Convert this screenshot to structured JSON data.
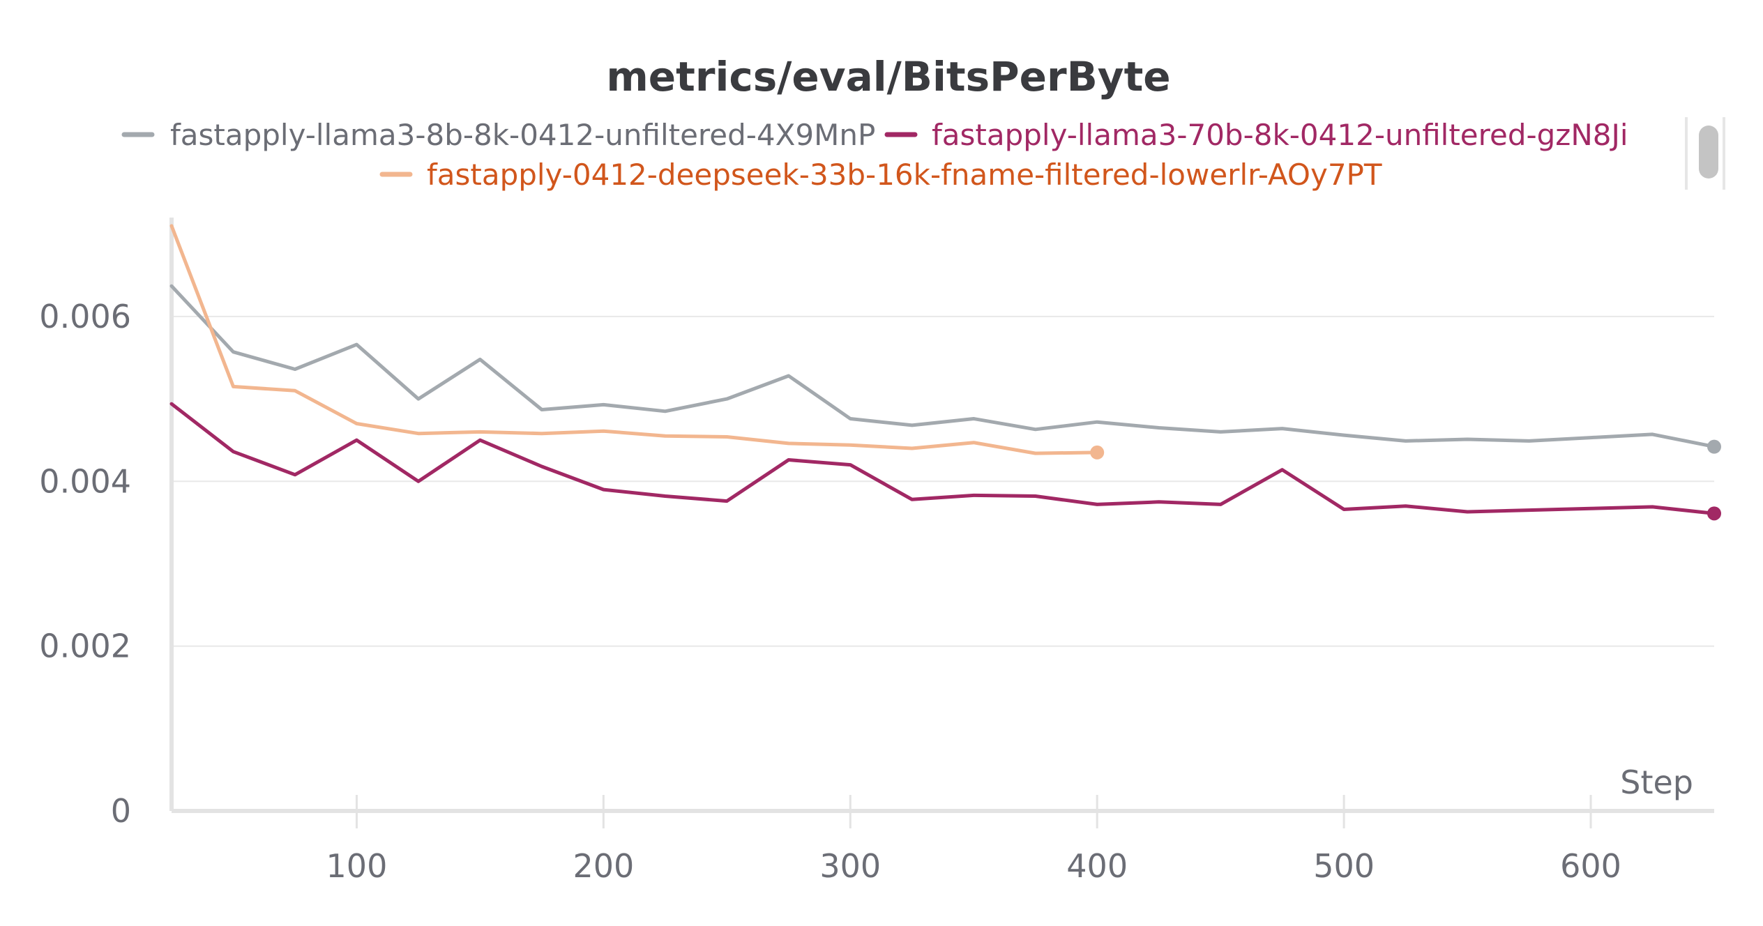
{
  "chart_data": {
    "type": "line",
    "title": "metrics/eval/BitsPerByte",
    "xlabel": "Step",
    "ylabel": "",
    "xlim": [
      25,
      650
    ],
    "ylim": [
      0,
      0.00715
    ],
    "x_ticks": [
      100,
      200,
      300,
      400,
      500,
      600
    ],
    "y_ticks": [
      0,
      0.002,
      0.004,
      0.006
    ],
    "x_tick_labels": [
      "100",
      "200",
      "300",
      "400",
      "500",
      "600"
    ],
    "y_tick_labels": [
      "0",
      "0.002",
      "0.004",
      "0.006"
    ],
    "grid": true,
    "legend_position": "top",
    "series": [
      {
        "name": "fastapply-llama3-8b-8k-0412-unfiltered-4X9MnP",
        "color": "#a3a9ae",
        "label_color": "#6b6d75",
        "end_marker": true,
        "x": [
          25,
          50,
          75,
          100,
          125,
          150,
          175,
          200,
          225,
          250,
          275,
          300,
          325,
          350,
          375,
          400,
          425,
          450,
          475,
          500,
          525,
          550,
          575,
          600,
          625,
          650
        ],
        "y": [
          0.00637,
          0.00557,
          0.00536,
          0.00566,
          0.005,
          0.00548,
          0.00487,
          0.00493,
          0.00485,
          0.005,
          0.00528,
          0.00476,
          0.00468,
          0.00476,
          0.00463,
          0.00472,
          0.00465,
          0.0046,
          0.00464,
          0.00456,
          0.00449,
          0.00451,
          0.00449,
          0.00453,
          0.00457,
          0.00442
        ]
      },
      {
        "name": "fastapply-llama3-70b-8k-0412-unfiltered-gzN8Ji",
        "color": "#a12864",
        "label_color": "#a12864",
        "end_marker": true,
        "x": [
          25,
          50,
          75,
          100,
          125,
          150,
          175,
          200,
          225,
          250,
          275,
          300,
          325,
          350,
          375,
          400,
          425,
          450,
          475,
          500,
          525,
          550,
          575,
          600,
          625,
          650
        ],
        "y": [
          0.00494,
          0.00436,
          0.00408,
          0.0045,
          0.004,
          0.0045,
          0.00418,
          0.0039,
          0.00382,
          0.00376,
          0.00426,
          0.0042,
          0.00378,
          0.00383,
          0.00382,
          0.00372,
          0.00375,
          0.00372,
          0.00414,
          0.00366,
          0.0037,
          0.00363,
          0.00365,
          0.00367,
          0.00369,
          0.00361
        ]
      },
      {
        "name": "fastapply-0412-deepseek-33b-16k-fname-filtered-lowerlr-AOy7PT",
        "color": "#f2b68f",
        "label_color": "#d1561c",
        "end_marker": true,
        "x": [
          25,
          50,
          75,
          100,
          125,
          150,
          175,
          200,
          225,
          250,
          275,
          300,
          325,
          350,
          375,
          400
        ],
        "y": [
          0.0071,
          0.00515,
          0.0051,
          0.0047,
          0.00458,
          0.0046,
          0.00458,
          0.00461,
          0.00455,
          0.00454,
          0.00446,
          0.00444,
          0.0044,
          0.00447,
          0.00434,
          0.00435
        ]
      }
    ]
  }
}
